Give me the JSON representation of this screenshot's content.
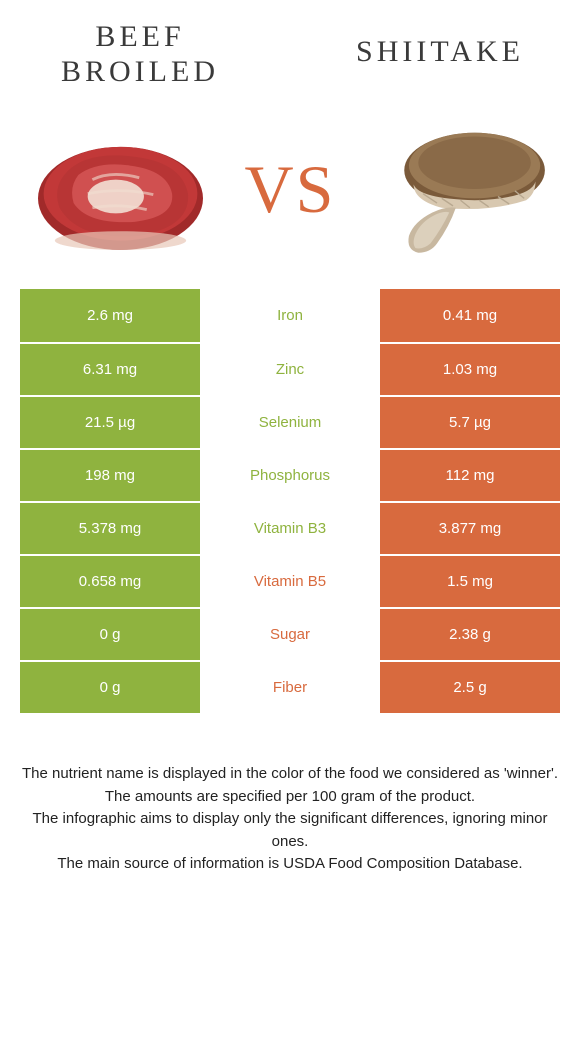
{
  "colors": {
    "left": "#8fb33f",
    "right": "#d86a3e",
    "vs": "#d86a3e",
    "title": "#3a3a3a",
    "footer": "#222222",
    "bg": "#ffffff"
  },
  "left": {
    "title": "Beef broiled"
  },
  "right": {
    "title": "Shiitake"
  },
  "vs_label": "VS",
  "rows": [
    {
      "name": "Iron",
      "left": "2.6 mg",
      "right": "0.41 mg",
      "winner": "left"
    },
    {
      "name": "Zinc",
      "left": "6.31 mg",
      "right": "1.03 mg",
      "winner": "left"
    },
    {
      "name": "Selenium",
      "left": "21.5 µg",
      "right": "5.7 µg",
      "winner": "left"
    },
    {
      "name": "Phosphorus",
      "left": "198 mg",
      "right": "112 mg",
      "winner": "left"
    },
    {
      "name": "Vitamin B3",
      "left": "5.378 mg",
      "right": "3.877 mg",
      "winner": "left"
    },
    {
      "name": "Vitamin B5",
      "left": "0.658 mg",
      "right": "1.5 mg",
      "winner": "right"
    },
    {
      "name": "Sugar",
      "left": "0 g",
      "right": "2.38 g",
      "winner": "right"
    },
    {
      "name": "Fiber",
      "left": "0 g",
      "right": "2.5 g",
      "winner": "right"
    }
  ],
  "footer": {
    "line1": "The nutrient name is displayed in the color of the food we considered as 'winner'.",
    "line2": "The amounts are specified per 100 gram of the product.",
    "line3": "The infographic aims to display only the significant differences, ignoring minor ones.",
    "line4": "The main source of information is USDA Food Composition Database."
  }
}
